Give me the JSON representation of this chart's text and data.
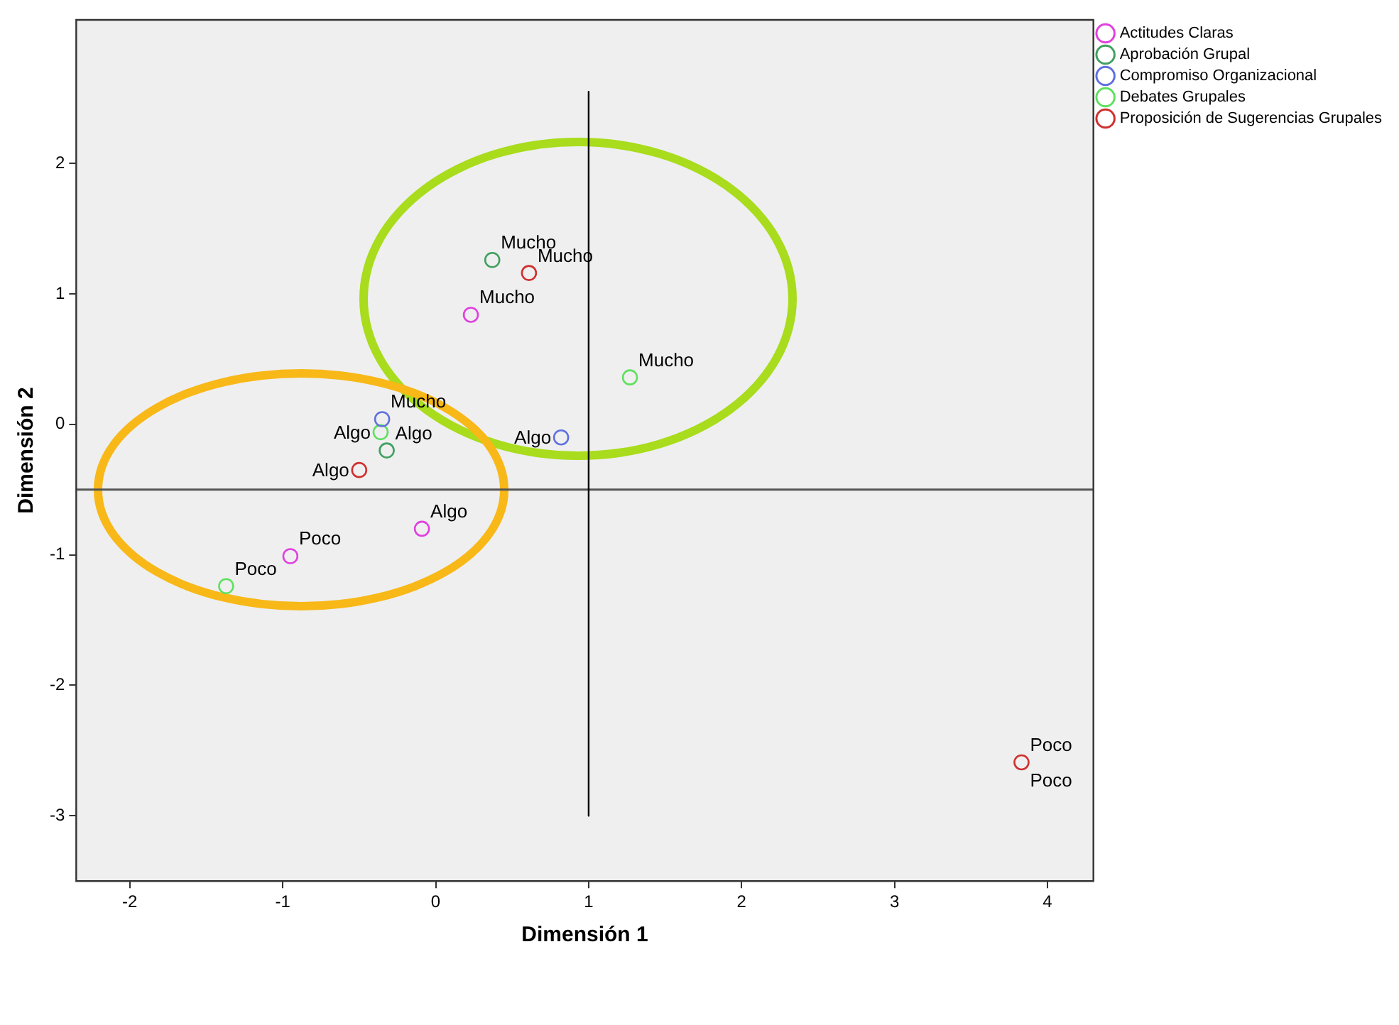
{
  "chart_data": {
    "type": "scatter",
    "xlabel": "Dimensión 1",
    "ylabel": "Dimensión 2",
    "xlim": [
      -2.35,
      4.3
    ],
    "xticks": [
      -2,
      -1,
      0,
      1,
      2,
      3,
      4
    ],
    "ylim": [
      -3.5,
      3.1
    ],
    "yticks": [
      -3,
      -2,
      -1,
      0,
      1,
      2
    ],
    "grid": false,
    "legend": "top right",
    "marker": "circle",
    "series": [
      {
        "name": "Actitudes Claras",
        "color": "#e040e0",
        "x": [
          0.23,
          -0.09,
          -0.95
        ],
        "values": [
          0.84,
          -0.8,
          -1.01
        ],
        "value_labels": [
          "Mucho",
          "Algo",
          "Poco"
        ]
      },
      {
        "name": "Aprobación Grupal",
        "color": "#40a060",
        "x": [
          0.37,
          -0.32
        ],
        "values": [
          1.26,
          -0.2
        ],
        "value_labels": [
          "Mucho",
          "Algo"
        ]
      },
      {
        "name": "Compromiso Organizacional",
        "color": "#6070e0",
        "x": [
          -0.35,
          0.82
        ],
        "values": [
          0.04,
          -0.1
        ],
        "value_labels": [
          "Mucho",
          "Algo"
        ]
      },
      {
        "name": "Debates Grupales",
        "color": "#60e060",
        "x": [
          1.27,
          -0.36,
          -1.37
        ],
        "values": [
          0.36,
          -0.06,
          -1.24
        ],
        "value_labels": [
          "Mucho",
          "Algo",
          "Poco"
        ]
      },
      {
        "name": "Proposición de Sugerencias Grupales",
        "color": "#d03030",
        "x": [
          0.61,
          -0.5,
          3.83
        ],
        "values": [
          1.16,
          -0.35,
          -2.59
        ],
        "value_labels": [
          "Mucho",
          "Algo",
          "Poco"
        ]
      },
      {
        "type": "line",
        "marker": "none",
        "color": "#000000",
        "x": [
          1,
          1
        ],
        "values": [
          2.55,
          -3
        ]
      }
    ],
    "ref_lines": [
      {
        "axis": "y",
        "value": -0.5,
        "color": "#555555"
      }
    ],
    "annotations": [
      {
        "text": "Poco",
        "x": 3.83,
        "y": -2.59
      }
    ]
  }
}
